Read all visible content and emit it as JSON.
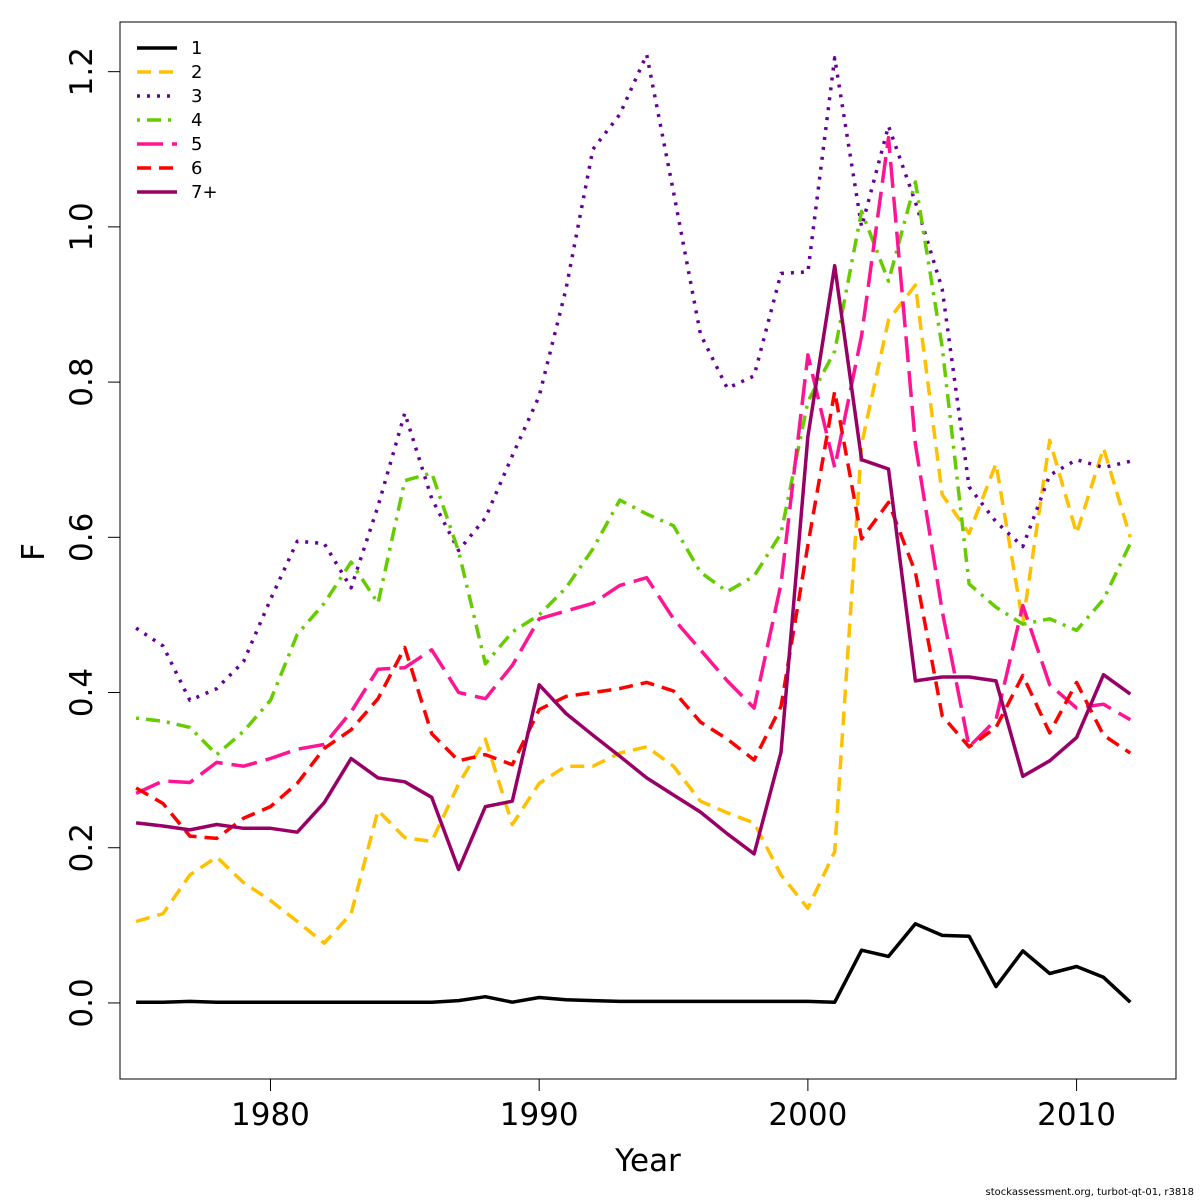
{
  "chart_data": {
    "type": "line",
    "xlabel": "Year",
    "ylabel": "F",
    "xlim": [
      1974.4,
      2013.7
    ],
    "ylim": [
      -0.098,
      1.264
    ],
    "x_ticks": [
      1980,
      1990,
      2000,
      2010
    ],
    "x_tick_labels": [
      "1980",
      "1990",
      "2000",
      "2010"
    ],
    "y_ticks": [
      0.0,
      0.2,
      0.4,
      0.6,
      0.8,
      1.0,
      1.2
    ],
    "y_tick_labels": [
      "0.0",
      "0.2",
      "0.4",
      "0.6",
      "0.8",
      "1.0",
      "1.2"
    ],
    "legend_position": "top-left",
    "grid": false,
    "x": [
      1975,
      1976,
      1977,
      1978,
      1979,
      1980,
      1981,
      1982,
      1983,
      1984,
      1985,
      1986,
      1987,
      1988,
      1989,
      1990,
      1991,
      1992,
      1993,
      1994,
      1995,
      1996,
      1997,
      1998,
      1999,
      2000,
      2001,
      2002,
      2003,
      2004,
      2005,
      2006,
      2007,
      2008,
      2009,
      2010,
      2011,
      2012
    ],
    "series": [
      {
        "name": "1",
        "color": "#000000",
        "dash": "solid",
        "values": [
          0.001,
          0.001,
          0.002,
          0.001,
          0.001,
          0.001,
          0.001,
          0.001,
          0.001,
          0.001,
          0.001,
          0.001,
          0.003,
          0.008,
          0.001,
          0.007,
          0.004,
          0.003,
          0.002,
          0.002,
          0.002,
          0.002,
          0.002,
          0.002,
          0.002,
          0.002,
          0.001,
          0.068,
          0.06,
          0.102,
          0.087,
          0.086,
          0.021,
          0.067,
          0.038,
          0.047,
          0.033,
          0.001
        ]
      },
      {
        "name": "2",
        "color": "#FFC000",
        "dash": "dashed",
        "values": [
          0.105,
          0.115,
          0.165,
          0.188,
          0.155,
          0.132,
          0.105,
          0.077,
          0.115,
          0.248,
          0.213,
          0.208,
          0.282,
          0.34,
          0.23,
          0.283,
          0.305,
          0.305,
          0.322,
          0.33,
          0.305,
          0.26,
          0.245,
          0.232,
          0.165,
          0.122,
          0.195,
          0.72,
          0.88,
          0.925,
          0.655,
          0.605,
          0.695,
          0.49,
          0.725,
          0.605,
          0.715,
          0.6
        ]
      },
      {
        "name": "3",
        "color": "#660099",
        "dash": "dotted",
        "values": [
          0.483,
          0.46,
          0.39,
          0.405,
          0.44,
          0.52,
          0.595,
          0.592,
          0.535,
          0.64,
          0.76,
          0.65,
          0.583,
          0.625,
          0.705,
          0.782,
          0.92,
          1.1,
          1.145,
          1.222,
          1.045,
          0.862,
          0.792,
          0.808,
          0.94,
          0.942,
          1.218,
          1.0,
          1.13,
          1.032,
          0.92,
          0.665,
          0.62,
          0.588,
          0.68,
          0.7,
          0.69,
          0.698
        ]
      },
      {
        "name": "4",
        "color": "#66CC00",
        "dash": "dotdash",
        "values": [
          0.367,
          0.363,
          0.355,
          0.32,
          0.35,
          0.39,
          0.475,
          0.515,
          0.568,
          0.515,
          0.673,
          0.683,
          0.582,
          0.437,
          0.478,
          0.5,
          0.535,
          0.585,
          0.648,
          0.63,
          0.615,
          0.555,
          0.53,
          0.55,
          0.605,
          0.775,
          0.84,
          1.02,
          0.93,
          1.058,
          0.845,
          0.54,
          0.51,
          0.488,
          0.495,
          0.48,
          0.52,
          0.592
        ]
      },
      {
        "name": "5",
        "color": "#FF1493",
        "dash": "longdash",
        "values": [
          0.27,
          0.286,
          0.284,
          0.31,
          0.305,
          0.315,
          0.327,
          0.333,
          0.375,
          0.43,
          0.432,
          0.455,
          0.4,
          0.392,
          0.435,
          0.495,
          0.505,
          0.515,
          0.538,
          0.548,
          0.495,
          0.455,
          0.415,
          0.38,
          0.54,
          0.835,
          0.69,
          0.86,
          1.115,
          0.72,
          0.505,
          0.33,
          0.365,
          0.512,
          0.41,
          0.38,
          0.385,
          0.365
        ]
      },
      {
        "name": "6",
        "color": "#FF0000",
        "dash": "dashed",
        "values": [
          0.277,
          0.257,
          0.215,
          0.212,
          0.238,
          0.253,
          0.283,
          0.328,
          0.352,
          0.392,
          0.458,
          0.347,
          0.312,
          0.32,
          0.307,
          0.378,
          0.395,
          0.4,
          0.405,
          0.413,
          0.402,
          0.362,
          0.34,
          0.313,
          0.382,
          0.59,
          0.788,
          0.598,
          0.645,
          0.555,
          0.37,
          0.33,
          0.355,
          0.422,
          0.348,
          0.413,
          0.345,
          0.322
        ]
      },
      {
        "name": "7+",
        "color": "#990066",
        "dash": "solid",
        "values": [
          0.232,
          0.228,
          0.223,
          0.23,
          0.225,
          0.225,
          0.22,
          0.258,
          0.315,
          0.29,
          0.285,
          0.265,
          0.172,
          0.253,
          0.26,
          0.41,
          0.373,
          0.345,
          0.318,
          0.29,
          0.268,
          0.246,
          0.218,
          0.192,
          0.323,
          0.73,
          0.95,
          0.7,
          0.688,
          0.415,
          0.42,
          0.42,
          0.415,
          0.292,
          0.312,
          0.342,
          0.423,
          0.398
        ]
      }
    ]
  },
  "footer": {
    "credit": "stockassessment.org, turbot-qt-01, r3818"
  }
}
